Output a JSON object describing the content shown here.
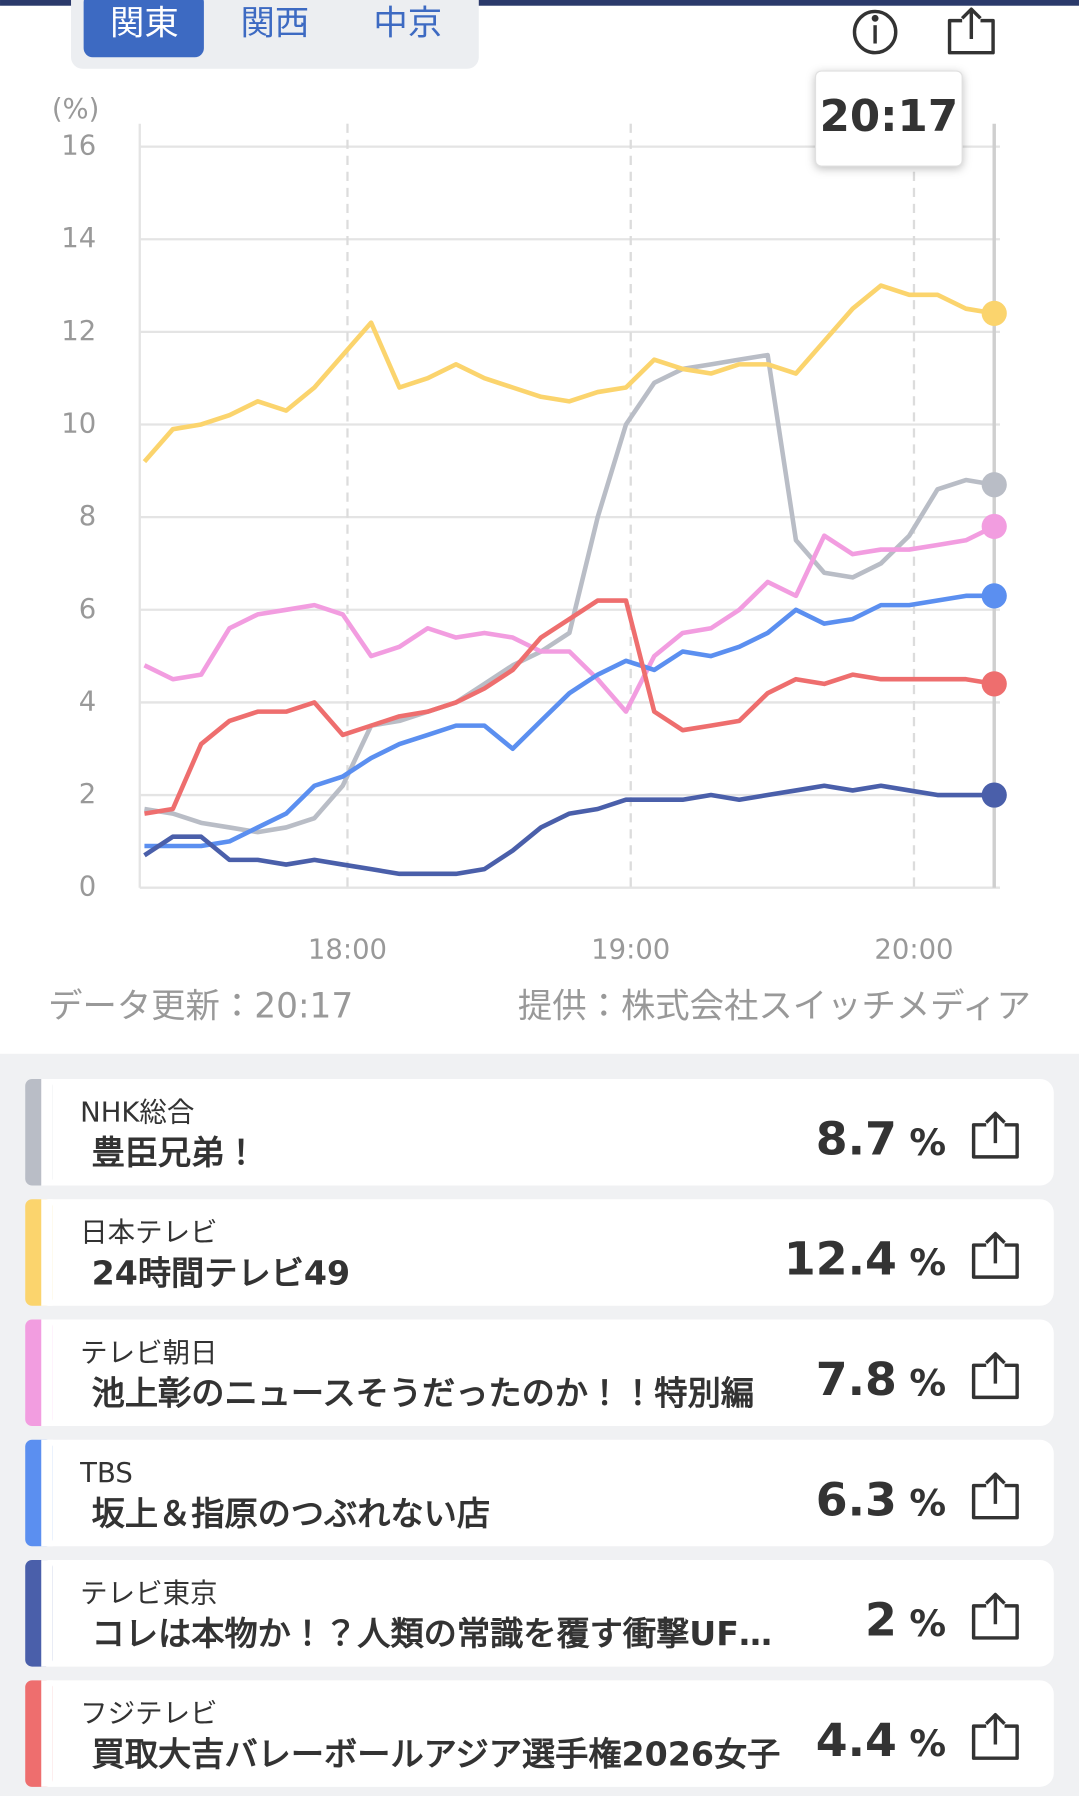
{
  "tabs": [
    "関東",
    "関西",
    "中京"
  ],
  "chart_data": {
    "type": "line",
    "y_unit": "(%)",
    "cursor_label": "20:17",
    "x": [
      1037,
      1043,
      1049,
      1055,
      1061,
      1067,
      1073,
      1079,
      1085,
      1091,
      1097,
      1103,
      1109,
      1115,
      1121,
      1127,
      1133,
      1139,
      1145,
      1151,
      1157,
      1163,
      1169,
      1175,
      1181,
      1187,
      1193,
      1199,
      1205,
      1211,
      1217
    ],
    "xlim": [
      1036,
      1217
    ],
    "xticks": [
      {
        "value": 1080,
        "label": "18:00"
      },
      {
        "value": 1140,
        "label": "19:00"
      },
      {
        "value": 1200,
        "label": "20:00"
      }
    ],
    "ylim": [
      0,
      16
    ],
    "yticks": [
      0,
      2,
      4,
      6,
      8,
      10,
      12,
      14,
      16
    ],
    "grid": true,
    "series": [
      {
        "name": "NHK総合",
        "color": "#b9bdc6",
        "values": [
          1.7,
          1.6,
          1.4,
          1.3,
          1.2,
          1.3,
          1.5,
          2.2,
          3.5,
          3.6,
          3.8,
          4.0,
          4.4,
          4.8,
          5.1,
          5.5,
          8.0,
          10.0,
          10.9,
          11.2,
          11.3,
          11.4,
          11.5,
          7.5,
          6.8,
          6.7,
          7.0,
          7.6,
          8.6,
          8.8,
          8.7
        ]
      },
      {
        "name": "日本テレビ",
        "color": "#fbd46d",
        "values": [
          9.2,
          9.9,
          10.0,
          10.2,
          10.5,
          10.3,
          10.8,
          11.5,
          12.2,
          10.8,
          11.0,
          11.3,
          11.0,
          10.8,
          10.6,
          10.5,
          10.7,
          10.8,
          11.4,
          11.2,
          11.1,
          11.3,
          11.3,
          11.1,
          11.8,
          12.5,
          13.0,
          12.8,
          12.8,
          12.5,
          12.4
        ]
      },
      {
        "name": "テレビ朝日",
        "color": "#f29de0",
        "values": [
          4.8,
          4.5,
          4.6,
          5.6,
          5.9,
          6.0,
          6.1,
          5.9,
          5.0,
          5.2,
          5.6,
          5.4,
          5.5,
          5.4,
          5.1,
          5.1,
          4.5,
          3.8,
          5.0,
          5.5,
          5.6,
          6.0,
          6.6,
          6.3,
          7.6,
          7.2,
          7.3,
          7.3,
          7.4,
          7.5,
          7.8
        ]
      },
      {
        "name": "TBS",
        "color": "#5b8ff0",
        "values": [
          0.9,
          0.9,
          0.9,
          1.0,
          1.3,
          1.6,
          2.2,
          2.4,
          2.8,
          3.1,
          3.3,
          3.5,
          3.5,
          3.0,
          3.6,
          4.2,
          4.6,
          4.9,
          4.7,
          5.1,
          5.0,
          5.2,
          5.5,
          6.0,
          5.7,
          5.8,
          6.1,
          6.1,
          6.2,
          6.3,
          6.3
        ]
      },
      {
        "name": "テレビ東京",
        "color": "#4a5faa",
        "values": [
          0.7,
          1.1,
          1.1,
          0.6,
          0.6,
          0.5,
          0.6,
          0.5,
          0.4,
          0.3,
          0.3,
          0.3,
          0.4,
          0.8,
          1.3,
          1.6,
          1.7,
          1.9,
          1.9,
          1.9,
          2.0,
          1.9,
          2.0,
          2.1,
          2.2,
          2.1,
          2.2,
          2.1,
          2.0,
          2.0,
          2.0
        ]
      },
      {
        "name": "フジテレビ",
        "color": "#ee6e6e",
        "values": [
          1.6,
          1.7,
          3.1,
          3.6,
          3.8,
          3.8,
          4.0,
          3.3,
          3.5,
          3.7,
          3.8,
          4.0,
          4.3,
          4.7,
          5.4,
          5.8,
          6.2,
          6.2,
          3.8,
          3.4,
          3.5,
          3.6,
          4.2,
          4.5,
          4.4,
          4.6,
          4.5,
          4.5,
          4.5,
          4.5,
          4.4
        ]
      }
    ]
  },
  "footer": {
    "updated": "データ更新：20:17",
    "provider": "提供：株式会社スイッチメディア"
  },
  "channels": [
    {
      "program": "豊臣兄弟！",
      "rating": 8.7,
      "unit": "%"
    },
    {
      "program": "24時間テレビ49",
      "rating": 12.4,
      "unit": "%"
    },
    {
      "program": "池上彰のニュースそうだったのか！！特別編",
      "rating": 7.8,
      "unit": "%"
    },
    {
      "program": "坂上＆指原のつぶれない店",
      "rating": 6.3,
      "unit": "%"
    },
    {
      "program": "コレは本物か！？人類の常識を覆す衝撃UF…",
      "rating": 2.0,
      "unit": "%"
    },
    {
      "program": "買取大吉バレーボールアジア選手権2026女子",
      "rating": 4.4,
      "unit": "%"
    }
  ]
}
